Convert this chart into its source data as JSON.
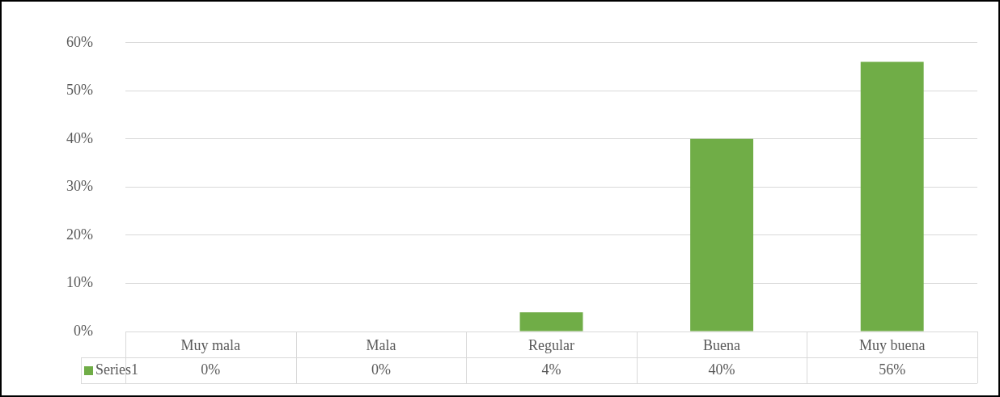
{
  "chart_data": {
    "type": "bar",
    "categories": [
      "Muy mala",
      "Mala",
      "Regular",
      "Buena",
      "Muy buena"
    ],
    "series": [
      {
        "name": "Series1",
        "color": "#70ad47",
        "values": [
          0,
          0,
          4,
          40,
          56
        ]
      }
    ],
    "ylim": [
      0,
      60
    ],
    "yticks": [
      {
        "value": 0,
        "label": "0%"
      },
      {
        "value": 10,
        "label": "10%"
      },
      {
        "value": 20,
        "label": "20%"
      },
      {
        "value": 30,
        "label": "30%"
      },
      {
        "value": 40,
        "label": "40%"
      },
      {
        "value": 50,
        "label": "50%"
      },
      {
        "value": 60,
        "label": "60%"
      }
    ],
    "value_labels": [
      "0%",
      "0%",
      "4%",
      "40%",
      "56%"
    ],
    "grid": "y",
    "legend": "bottom"
  }
}
